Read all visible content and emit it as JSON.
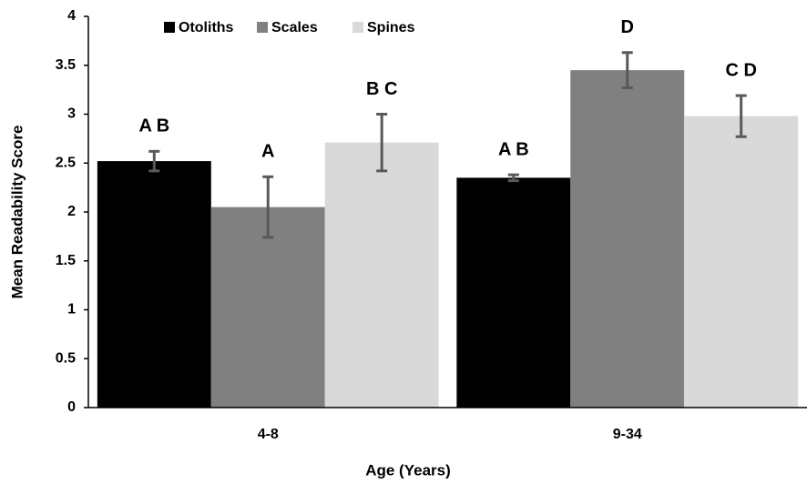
{
  "chart_data": {
    "type": "bar",
    "x_label": "Age (Years)",
    "y_label": "Mean Readability Score",
    "categories": [
      "4-8",
      "9-34"
    ],
    "series": [
      {
        "name": "Otoliths",
        "color": "#000000",
        "values": [
          2.52,
          2.35
        ],
        "errors": [
          0.1,
          0.03
        ],
        "labels": [
          "A B",
          "A B"
        ]
      },
      {
        "name": "Scales",
        "color": "#808080",
        "values": [
          2.05,
          3.45
        ],
        "errors": [
          0.31,
          0.18
        ],
        "labels": [
          "A",
          "D"
        ]
      },
      {
        "name": "Spines",
        "color": "#d9d9d9",
        "values": [
          2.71,
          2.98
        ],
        "errors": [
          0.29,
          0.21
        ],
        "labels": [
          "B C",
          "C D"
        ]
      }
    ],
    "ylim": [
      0,
      4
    ],
    "yticks": [
      0,
      0.5,
      1,
      1.5,
      2,
      2.5,
      3,
      3.5,
      4
    ],
    "grid": false,
    "legend": "top",
    "error_color": "#595959"
  }
}
